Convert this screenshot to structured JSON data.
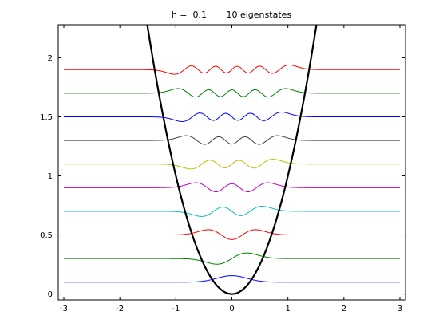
{
  "chart_data": {
    "type": "line",
    "title": "h =  0.1       10 eigenstates",
    "xlabel": "",
    "ylabel": "",
    "xlim": [
      -3.1,
      3.1
    ],
    "ylim": [
      -0.05,
      2.28
    ],
    "x_ticks": [
      -3,
      -2,
      -1,
      0,
      1,
      2,
      3
    ],
    "x_tick_labels": [
      "-3",
      "-2",
      "-1",
      "0",
      "1",
      "2",
      "3"
    ],
    "y_ticks": [
      0,
      0.5,
      1,
      1.5,
      2
    ],
    "y_tick_labels": [
      "0",
      "0.5",
      "1",
      "1.5",
      "2"
    ],
    "grid": false,
    "potential": {
      "name": "V(x) = x^2",
      "color": "#000000",
      "x_range": [
        -1.51,
        1.51
      ]
    },
    "series": [
      {
        "n": 0,
        "offset": 0.1,
        "color": "#0000ff",
        "x_range": [
          -3,
          3
        ]
      },
      {
        "n": 1,
        "offset": 0.3,
        "color": "#008000",
        "x_range": [
          -3,
          3
        ]
      },
      {
        "n": 2,
        "offset": 0.5,
        "color": "#ff0000",
        "x_range": [
          -3,
          3
        ]
      },
      {
        "n": 3,
        "offset": 0.7,
        "color": "#00bfbf",
        "x_range": [
          -3,
          3
        ]
      },
      {
        "n": 4,
        "offset": 0.9,
        "color": "#bf00bf",
        "x_range": [
          -3,
          3
        ]
      },
      {
        "n": 5,
        "offset": 1.1,
        "color": "#bfbf00",
        "x_range": [
          -3,
          3
        ]
      },
      {
        "n": 6,
        "offset": 1.3,
        "color": "#404040",
        "x_range": [
          -3,
          3
        ]
      },
      {
        "n": 7,
        "offset": 1.5,
        "color": "#0000ff",
        "x_range": [
          -3,
          3
        ]
      },
      {
        "n": 8,
        "offset": 1.7,
        "color": "#008000",
        "x_range": [
          -3,
          3
        ]
      },
      {
        "n": 9,
        "offset": 1.9,
        "color": "#ff0000",
        "x_range": [
          -3,
          3
        ]
      }
    ]
  }
}
